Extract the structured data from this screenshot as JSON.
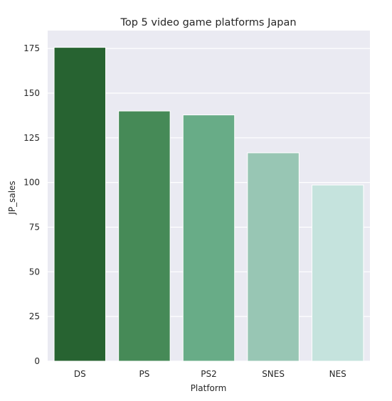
{
  "chart_data": {
    "type": "bar",
    "title": "Top 5 video game platforms Japan",
    "xlabel": "Platform",
    "ylabel": "JP_sales",
    "categories": [
      "DS",
      "PS",
      "PS2",
      "SNES",
      "NES"
    ],
    "values": [
      175.6,
      140.0,
      137.8,
      116.6,
      98.6
    ],
    "colors": [
      "#276331",
      "#468a57",
      "#68ac87",
      "#98c6b4",
      "#c5e3dd"
    ],
    "ylim": [
      0,
      185
    ],
    "yticks": [
      0,
      25,
      50,
      75,
      100,
      125,
      150,
      175
    ],
    "ytick_labels": [
      "0",
      "25",
      "50",
      "75",
      "100",
      "125",
      "150",
      "175"
    ],
    "grid": true,
    "background": "#eaeaf2",
    "grid_color": "#ffffff"
  }
}
